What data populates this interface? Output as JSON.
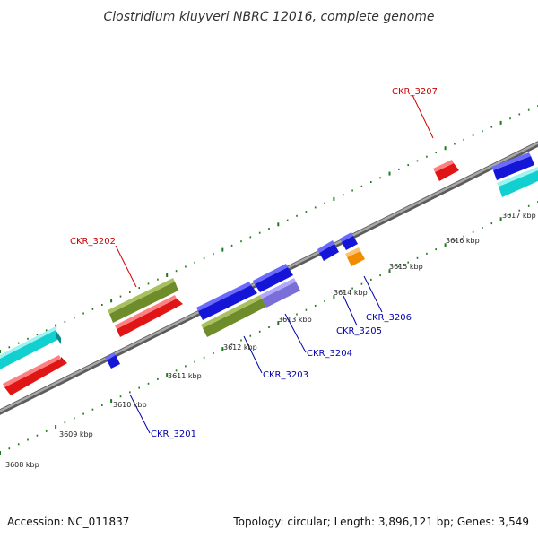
{
  "title": "Clostridium kluyveri NBRC 12016, complete genome",
  "footer": {
    "accession": "Accession: NC_011837",
    "summary": "Topology: circular; Length: 3,896,121 bp; Genes: 3,549"
  },
  "ticks": [
    "3608 kbp",
    "3609 kbp",
    "3610 kbp",
    "3611 kbp",
    "3612 kbp",
    "3613 kbp",
    "3614 kbp",
    "3615 kbp",
    "3616 kbp",
    "3617 kbp"
  ],
  "gene_labels": {
    "ckr_3201": "CKR_3201",
    "ckr_3202": "CKR_3202",
    "ckr_3203": "CKR_3203",
    "ckr_3204": "CKR_3204",
    "ckr_3205": "CKR_3205",
    "ckr_3206": "CKR_3206",
    "ckr_3207": "CKR_3207"
  },
  "colors": {
    "backbone": "#8a8a8a",
    "tick": "#1f7a1f",
    "label_reverse": "#0000aa",
    "label_forward": "#cc0000",
    "gene_red": "#e01515",
    "gene_blue": "#1515d8",
    "gene_cyan": "#12d0d0",
    "gene_olive": "#6e8c2a",
    "gene_orange": "#f08c00",
    "gene_lavender": "#7a6fd8"
  }
}
